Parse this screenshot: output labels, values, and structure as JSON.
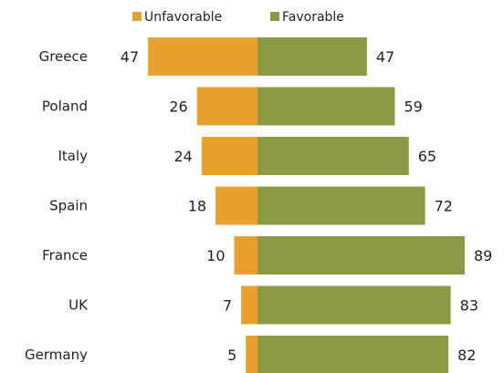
{
  "chart_data": {
    "type": "bar",
    "orientation": "horizontal-diverging",
    "categories": [
      "Greece",
      "Poland",
      "Italy",
      "Spain",
      "France",
      "UK",
      "Germany"
    ],
    "series": [
      {
        "name": "Unfavorable",
        "color": "#E8A12E",
        "values": [
          47,
          26,
          24,
          18,
          10,
          7,
          5
        ]
      },
      {
        "name": "Favorable",
        "color": "#8C9A45",
        "values": [
          47,
          59,
          65,
          72,
          89,
          83,
          82
        ]
      }
    ],
    "legend_position": "top",
    "grid": false,
    "title": "",
    "xlabel": "",
    "ylabel": ""
  }
}
